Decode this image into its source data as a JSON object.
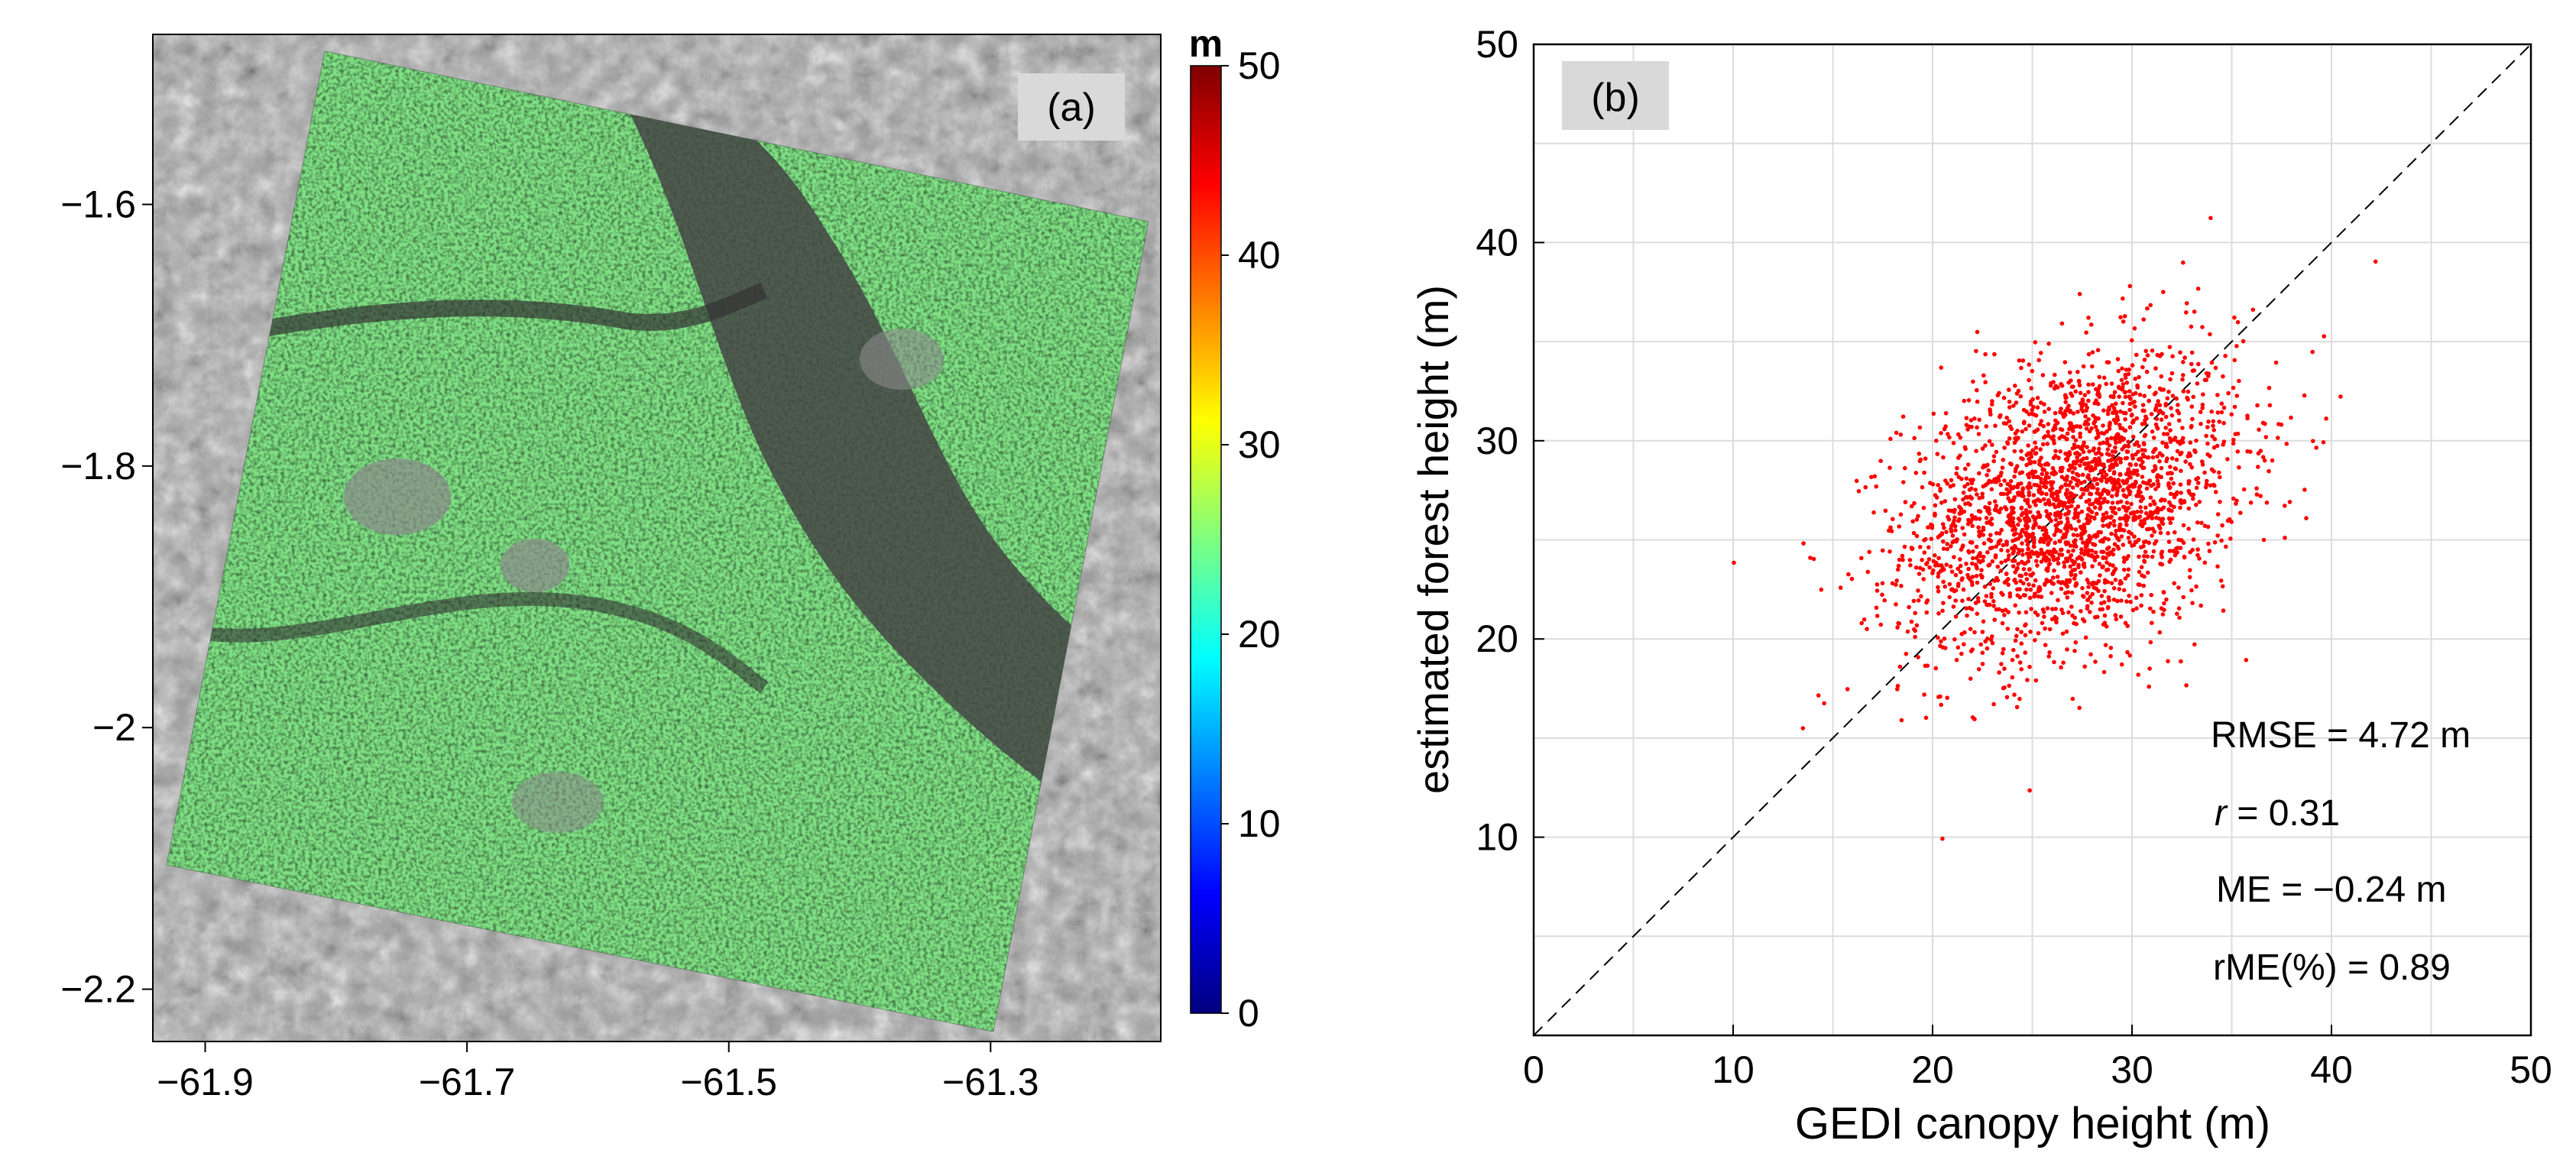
{
  "chart_data": [
    {
      "type": "heatmap",
      "panel_label": "(a)",
      "x_ticks": [
        -61.9,
        -61.7,
        -61.5,
        -61.3
      ],
      "x_tick_labels": [
        "−61.9",
        "−61.7",
        "−61.5",
        "−61.3"
      ],
      "y_ticks": [
        -1.6,
        -1.8,
        -2.0,
        -2.2
      ],
      "y_tick_labels": [
        "−1.6",
        "−1.8",
        "−2",
        "−2.2"
      ],
      "xlim": [
        -61.94,
        -61.17
      ],
      "ylim": [
        -2.24,
        -1.47
      ],
      "colorbar": {
        "unit": "m",
        "min": 0,
        "max": 50,
        "ticks": [
          0,
          10,
          20,
          30,
          40,
          50
        ],
        "tick_labels": [
          "0",
          "10",
          "20",
          "30",
          "40",
          "50"
        ],
        "colors": [
          "#00007f",
          "#0000ff",
          "#007fff",
          "#00ffff",
          "#7fff7f",
          "#ffff00",
          "#ff7f00",
          "#ff0000",
          "#7f0000"
        ]
      }
    },
    {
      "type": "scatter",
      "panel_label": "(b)",
      "title": "",
      "xlabel": "GEDI canopy height (m)",
      "ylabel": "estimated forest height (m)",
      "xlim": [
        0,
        50
      ],
      "ylim": [
        0,
        50
      ],
      "x_ticks": [
        0,
        10,
        20,
        30,
        40,
        50
      ],
      "y_ticks": [
        10,
        20,
        30,
        40,
        50
      ],
      "x_tick_labels": [
        "0",
        "10",
        "20",
        "30",
        "40",
        "50"
      ],
      "y_tick_labels": [
        "10",
        "20",
        "30",
        "40",
        "50"
      ],
      "grid": true,
      "reference_line": "1:1",
      "point_color": "#ff0000",
      "n_points": 2500,
      "cloud": {
        "mean_x": 27.0,
        "mean_y": 26.9,
        "std_x": 4.2,
        "std_y": 3.8,
        "r": 0.31
      },
      "stats": {
        "rmse_label": "RMSE = 4.72 m",
        "r_label": "r",
        "r_value": " = 0.31",
        "me_label": "ME = −0.24 m",
        "rme_label": "rME(%) = 0.89"
      }
    }
  ]
}
